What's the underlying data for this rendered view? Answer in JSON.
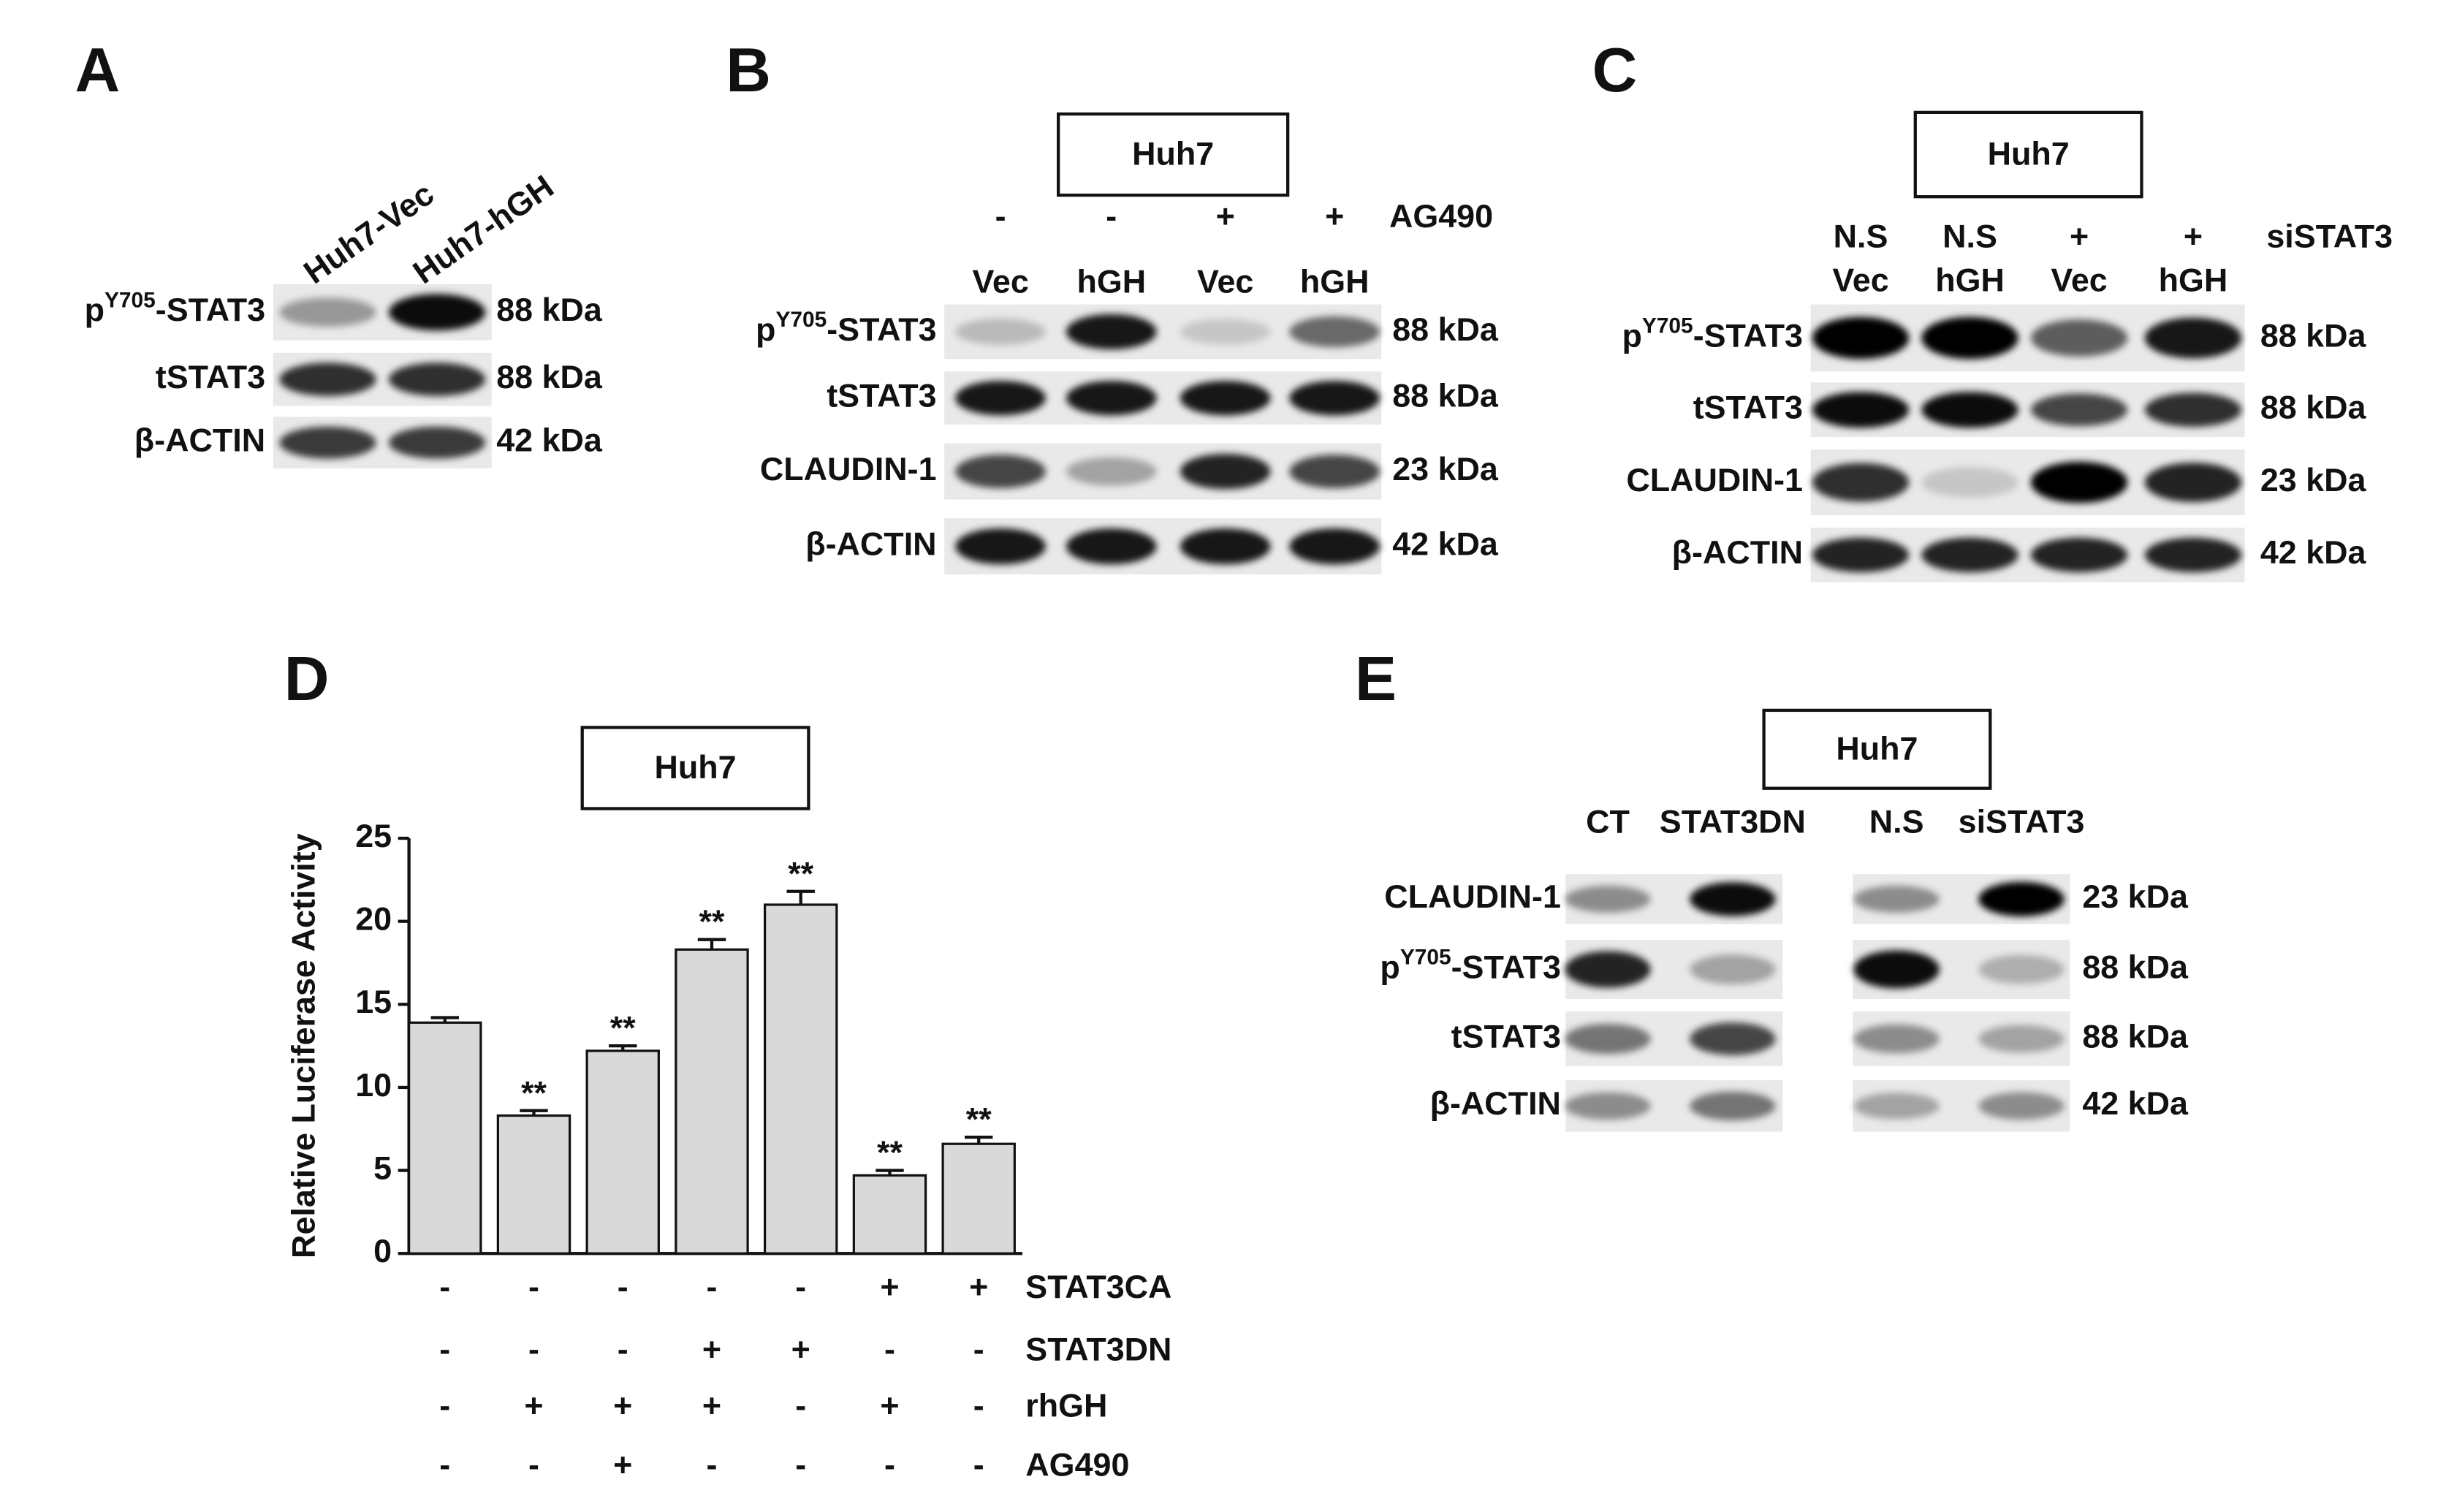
{
  "panel_a": {
    "label": "A",
    "lanes": [
      "Huh7-Vec",
      "Huh7-hGH"
    ],
    "rows": [
      {
        "protein": {
          "base": "p",
          "superscript": "Y705",
          "suffix": "-STAT3"
        },
        "size": "88 kDa"
      },
      {
        "protein": "tSTAT3",
        "size": "88 kDa"
      },
      {
        "protein": "β-ACTIN",
        "size": "42 kDa"
      }
    ]
  },
  "panel_b": {
    "label": "B",
    "box": "Huh7",
    "treatment": {
      "name": "AG490",
      "values": [
        "-",
        "-",
        "+",
        "+"
      ]
    },
    "lanes": [
      "Vec",
      "hGH",
      "Vec",
      "hGH"
    ],
    "rows": [
      {
        "protein": {
          "base": "p",
          "superscript": "Y705",
          "suffix": "-STAT3"
        },
        "size": "88 kDa"
      },
      {
        "protein": "tSTAT3",
        "size": "88 kDa"
      },
      {
        "protein": "CLAUDIN-1",
        "size": "23 kDa"
      },
      {
        "protein": "β-ACTIN",
        "size": "42 kDa"
      }
    ]
  },
  "panel_c": {
    "label": "C",
    "box": "Huh7",
    "treatment": {
      "name": "siSTAT3",
      "values": [
        "N.S",
        "N.S",
        "+",
        "+"
      ]
    },
    "lanes": [
      "Vec",
      "hGH",
      "Vec",
      "hGH"
    ],
    "rows": [
      {
        "protein": {
          "base": "p",
          "superscript": "Y705",
          "suffix": "-STAT3"
        },
        "size": "88 kDa"
      },
      {
        "protein": "tSTAT3",
        "size": "88 kDa"
      },
      {
        "protein": "CLAUDIN-1",
        "size": "23 kDa"
      },
      {
        "protein": "β-ACTIN",
        "size": "42 kDa"
      }
    ]
  },
  "panel_e": {
    "label": "E",
    "box": "Huh7",
    "lanes": [
      "CT",
      "STAT3DN",
      "N.S",
      "siSTAT3"
    ],
    "rows": [
      {
        "protein": "CLAUDIN-1",
        "size": "23 kDa"
      },
      {
        "protein": {
          "base": "p",
          "superscript": "Y705",
          "suffix": "-STAT3"
        },
        "size": "88 kDa"
      },
      {
        "protein": "tSTAT3",
        "size": "88 kDa"
      },
      {
        "protein": "β-ACTIN",
        "size": "42 kDa"
      }
    ]
  },
  "chart_data": {
    "type": "bar",
    "panel_label": "D",
    "box": "Huh7",
    "y_label": "Relative Luciferase Activity",
    "values": [
      13.9,
      8.3,
      12.2,
      18.3,
      21.0,
      4.7,
      6.6
    ],
    "errors": [
      0.3,
      0.3,
      0.3,
      0.6,
      0.8,
      0.3,
      0.4
    ],
    "significance": [
      null,
      "**",
      "**",
      "**",
      "**",
      "**",
      "**"
    ],
    "color": "#d9d9d9",
    "ylim": [
      0,
      25
    ],
    "yticks": [
      0,
      5,
      10,
      15,
      20,
      25
    ],
    "conditions": [
      {
        "name": "STAT3CA",
        "values": [
          "-",
          "-",
          "-",
          "-",
          "-",
          "+",
          "+"
        ]
      },
      {
        "name": "STAT3DN",
        "values": [
          "-",
          "-",
          "-",
          "+",
          "+",
          "-",
          "-"
        ]
      },
      {
        "name": "rhGH",
        "values": [
          "-",
          "+",
          "+",
          "+",
          "-",
          "+",
          "-"
        ]
      },
      {
        "name": "AG490",
        "values": [
          "-",
          "-",
          "+",
          "-",
          "-",
          "-",
          "-"
        ]
      }
    ]
  }
}
